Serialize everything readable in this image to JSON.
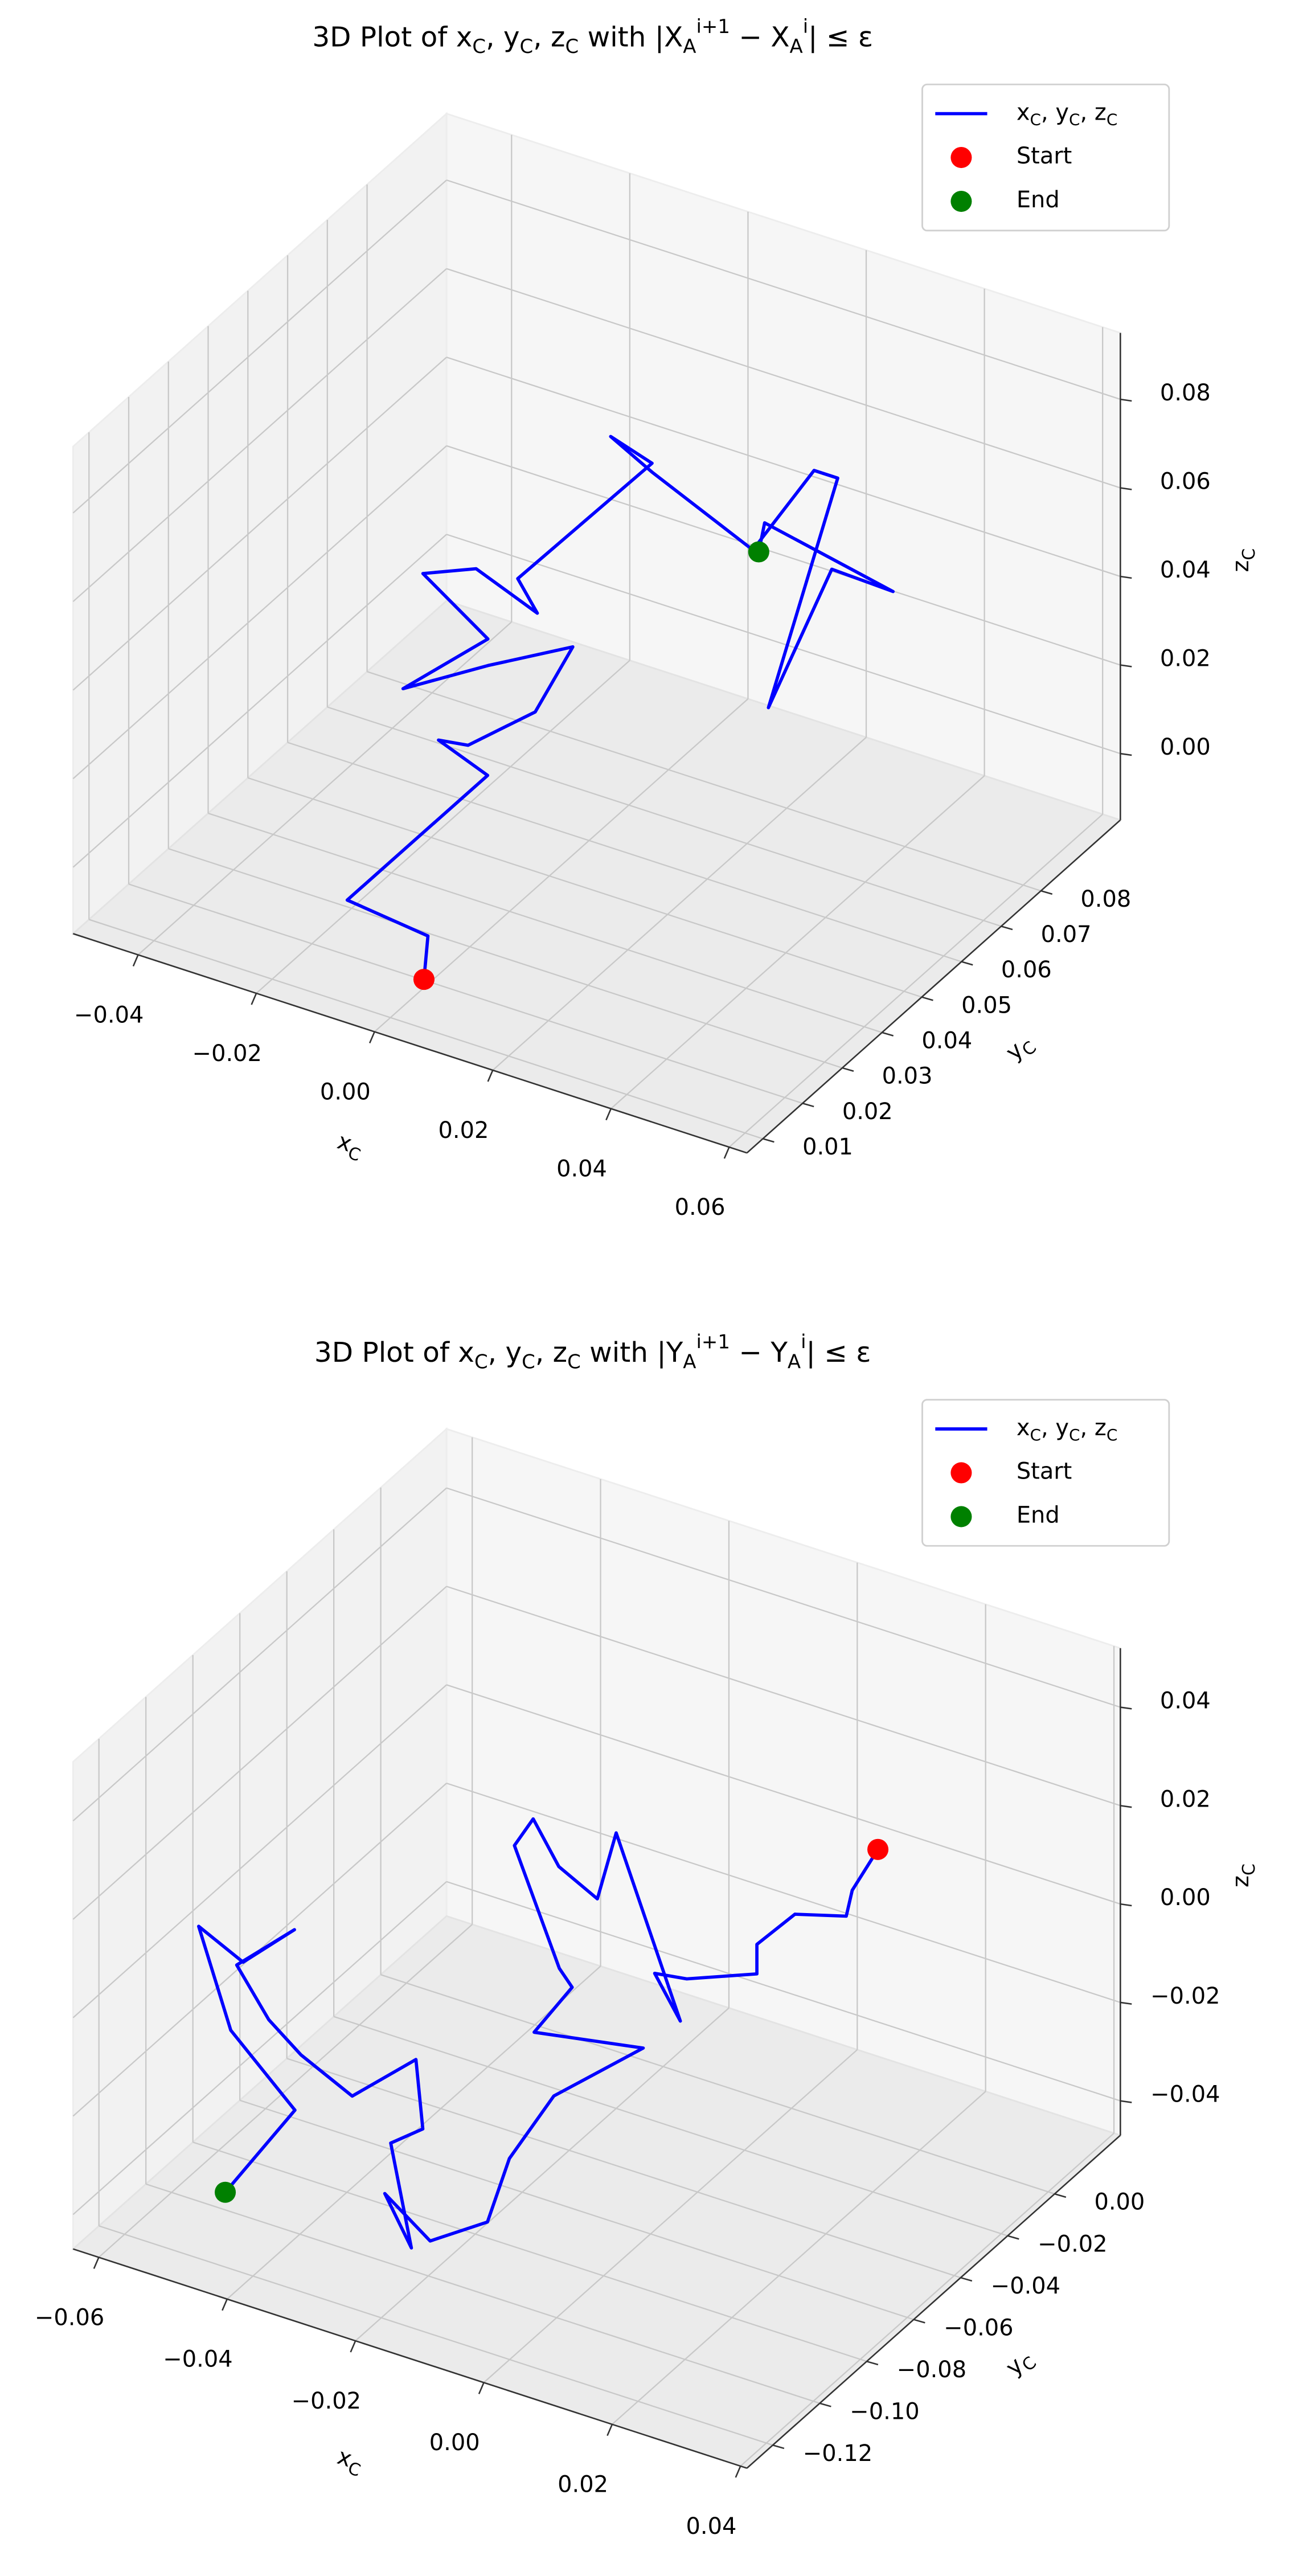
{
  "chart_data": [
    {
      "type": "line3d",
      "title": "3D Plot of x_C, y_C, z_C with |X_A^{i+1} − X_A^i| ≤ ε",
      "xlabel": "x_C",
      "ylabel": "y_C",
      "zlabel": "z_C",
      "xlim": [
        -0.051,
        0.063
      ],
      "ylim": [
        0.006,
        0.1
      ],
      "zlim": [
        -0.015,
        0.095
      ],
      "xticks": [
        {
          "value": -0.04,
          "label": "−0.04"
        },
        {
          "value": -0.02,
          "label": "−0.02"
        },
        {
          "value": 0,
          "label": "0.00"
        },
        0.02,
        0.04,
        0.06
      ],
      "yticks": [
        0.01,
        0.02,
        0.03,
        0.04,
        0.05,
        0.06,
        0.07,
        0.08
      ],
      "zticks": [
        {
          "value": 0,
          "label": "0.00"
        },
        0.02,
        0.04,
        0.06,
        0.08
      ],
      "grid": true,
      "legend": "upper right",
      "series": [
        {
          "name": "x_C, y_C, z_C",
          "style": "line",
          "color": "#0000ff",
          "x": [
            0.005,
            0.005,
            -0.01,
            0.003,
            -0.008,
            -0.003,
            0.005,
            0.008,
            -0.003,
            -0.014,
            -0.003,
            -0.014,
            -0.005,
            0.002,
            -0.004,
            0.012,
            0.005,
            0.012,
            0.023,
            0.03,
            0.034,
            0.029,
            0.033,
            0.04,
            0.025,
            0.024
          ],
          "y": [
            0.011,
            0.012,
            0.014,
            0.03,
            0.034,
            0.034,
            0.039,
            0.044,
            0.039,
            0.034,
            0.039,
            0.039,
            0.039,
            0.044,
            0.048,
            0.058,
            0.058,
            0.058,
            0.067,
            0.072,
            0.072,
            0.062,
            0.072,
            0.077,
            0.067,
            0.067
          ],
          "z": [
            -0.005,
            0.004,
            0.004,
            0.025,
            0.025,
            0.026,
            0.033,
            0.045,
            0.04,
            0.034,
            0.046,
            0.056,
            0.061,
            0.05,
            0.052,
            0.077,
            0.08,
            0.075,
            0.055,
            0.072,
            0.072,
            0.026,
            0.051,
            0.045,
            0.062,
            0.055
          ]
        },
        {
          "name": "Start",
          "style": "marker",
          "color": "#ff0000",
          "x": [
            0.005
          ],
          "y": [
            0.011
          ],
          "z": [
            -0.005
          ]
        },
        {
          "name": "End",
          "style": "marker",
          "color": "#008000",
          "x": [
            0.024
          ],
          "y": [
            0.067
          ],
          "z": [
            0.055
          ]
        }
      ]
    },
    {
      "type": "line3d",
      "title": "3D Plot of x_C, y_C, z_C with |Y_A^{i+1} − Y_A^i| ≤ ε",
      "xlabel": "x_C",
      "ylabel": "y_C",
      "zlabel": "z_C",
      "xlim": [
        -0.064,
        0.041
      ],
      "ylim": [
        -0.131,
        0.028
      ],
      "zlim": [
        -0.047,
        0.052
      ],
      "xticks": [
        {
          "value": -0.06,
          "label": "−0.06"
        },
        {
          "value": -0.04,
          "label": "−0.04"
        },
        {
          "value": -0.02,
          "label": "−0.02"
        },
        {
          "value": 0,
          "label": "0.00"
        },
        0.02,
        0.04
      ],
      "yticks": [
        {
          "value": -0.12,
          "label": "−0.12"
        },
        {
          "value": -0.1,
          "label": "−0.10"
        },
        {
          "value": -0.08,
          "label": "−0.08"
        },
        {
          "value": -0.06,
          "label": "−0.06"
        },
        {
          "value": -0.04,
          "label": "−0.04"
        },
        {
          "value": -0.02,
          "label": "−0.02"
        },
        {
          "value": 0,
          "label": "0.00"
        }
      ],
      "zticks": [
        {
          "value": -0.04,
          "label": "−0.04"
        },
        {
          "value": -0.02,
          "label": "−0.02"
        },
        {
          "value": 0,
          "label": "0.00"
        },
        0.02,
        0.04
      ],
      "grid": true,
      "legend": "upper right",
      "series": [
        {
          "name": "x_C, y_C, z_C",
          "style": "line",
          "color": "#0000ff",
          "x": [
            0.012,
            0.008,
            0.01,
            0.002,
            -0.001,
            -0.001,
            -0.009,
            -0.014,
            -0.01,
            -0.015,
            -0.02,
            -0.02,
            -0.026,
            -0.03,
            -0.03,
            -0.023,
            -0.021,
            -0.024,
            -0.007,
            -0.018,
            -0.022,
            -0.017,
            -0.023,
            -0.033,
            -0.023,
            -0.035,
            -0.03,
            -0.034,
            -0.041,
            -0.049,
            -0.054,
            -0.059,
            -0.05,
            -0.058,
            -0.062,
            -0.057,
            -0.047,
            -0.052
          ],
          "y": [
            0.004,
            0.004,
            -0.004,
            -0.004,
            -0.012,
            -0.012,
            -0.02,
            -0.02,
            -0.02,
            -0.02,
            -0.02,
            -0.028,
            -0.028,
            -0.028,
            -0.036,
            -0.036,
            -0.036,
            -0.044,
            -0.044,
            -0.052,
            -0.06,
            -0.083,
            -0.091,
            -0.083,
            -0.099,
            -0.075,
            -0.075,
            -0.067,
            -0.075,
            -0.075,
            -0.075,
            -0.075,
            -0.075,
            -0.075,
            -0.083,
            -0.083,
            -0.083,
            -0.099
          ],
          "z": [
            0.009,
            -0.001,
            -0.002,
            -0.005,
            -0.009,
            -0.015,
            -0.016,
            -0.017,
            -0.025,
            -0.008,
            0.009,
            -0.001,
            0.003,
            0.011,
            0.009,
            -0.013,
            -0.016,
            -0.023,
            -0.019,
            -0.03,
            -0.041,
            -0.042,
            -0.045,
            -0.043,
            -0.043,
            -0.037,
            -0.032,
            -0.023,
            -0.03,
            -0.025,
            -0.02,
            -0.011,
            0.0,
            -0.01,
            -0.001,
            -0.02,
            -0.032,
            -0.044
          ]
        },
        {
          "name": "Start",
          "style": "marker",
          "color": "#ff0000",
          "x": [
            0.012
          ],
          "y": [
            0.004
          ],
          "z": [
            0.009
          ]
        },
        {
          "name": "End",
          "style": "marker",
          "color": "#008000",
          "x": [
            -0.052
          ],
          "y": [
            -0.099
          ],
          "z": [
            -0.044
          ]
        }
      ]
    }
  ]
}
